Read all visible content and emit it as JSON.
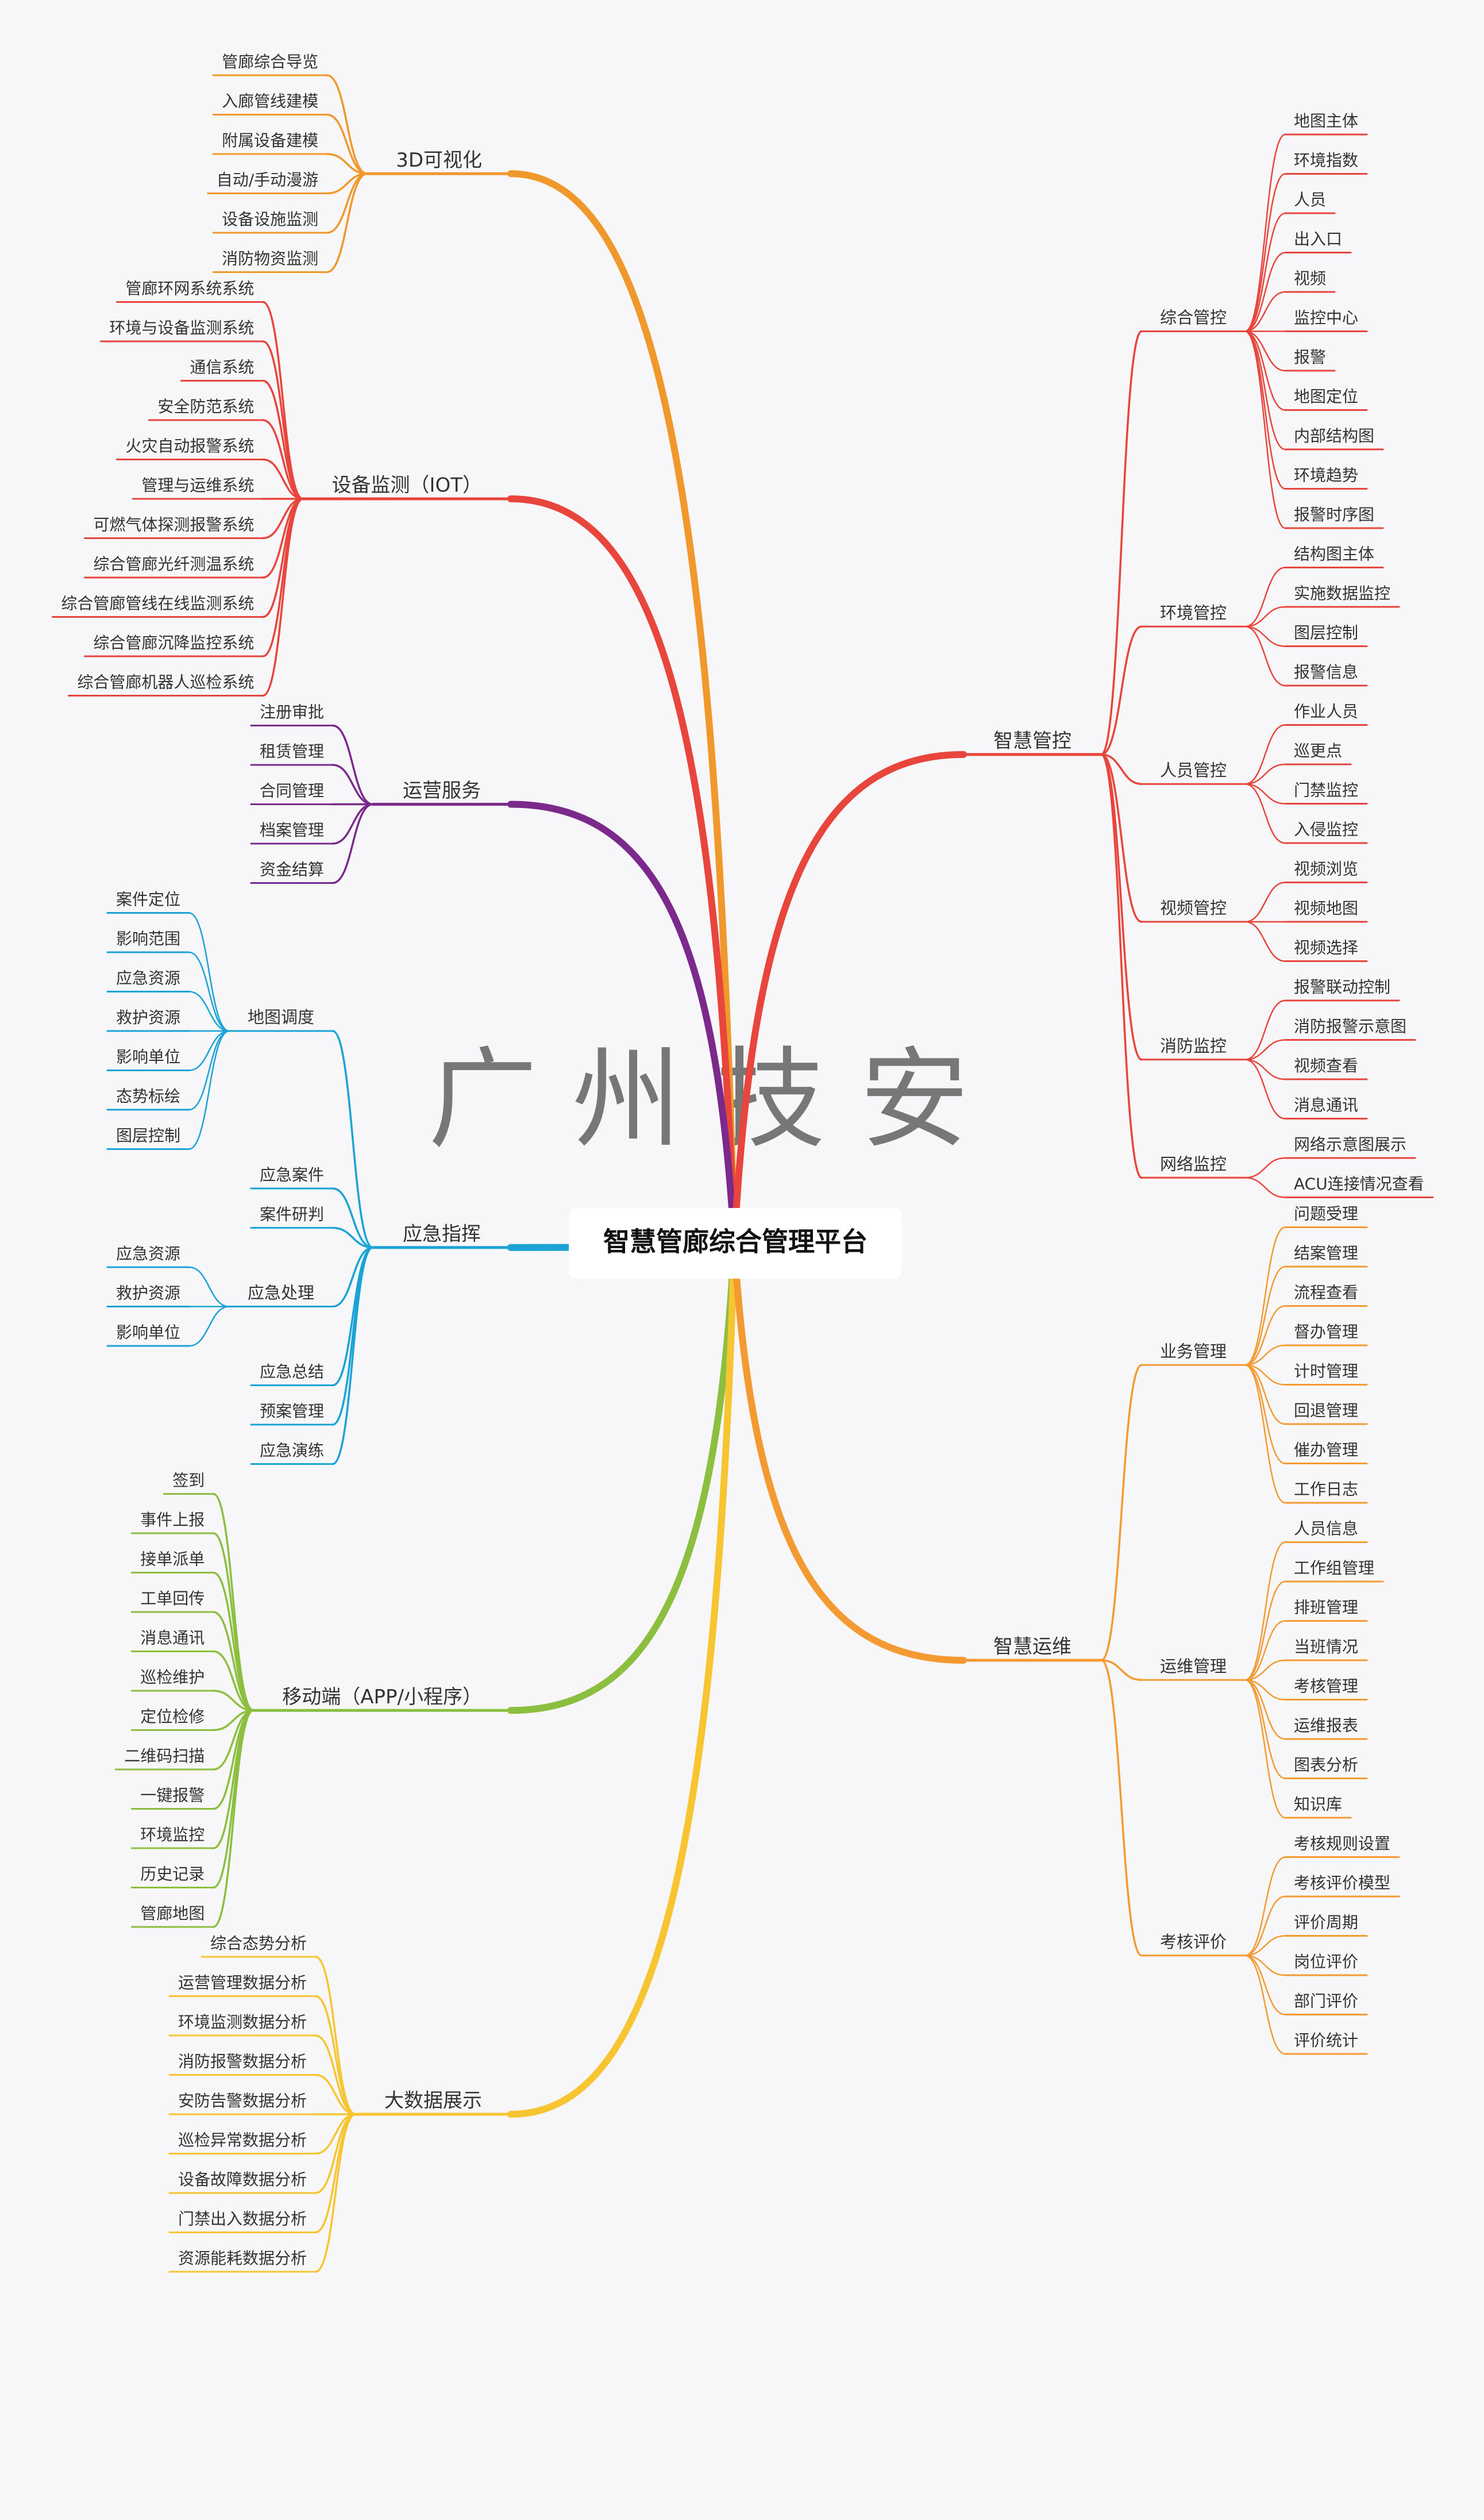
{
  "title": "智慧管廊综合管理平台",
  "watermark": "广 州 技 安",
  "branches": [
    {
      "label": "3D可视化",
      "side": "left",
      "color": "#f0982c",
      "children": [
        {
          "label": "管廊综合导览"
        },
        {
          "label": "入廊管线建模"
        },
        {
          "label": "附属设备建模"
        },
        {
          "label": "自动/手动漫游"
        },
        {
          "label": "设备设施监测"
        },
        {
          "label": "消防物资监测"
        }
      ]
    },
    {
      "label": "设备监测（IOT）",
      "side": "left",
      "color": "#e8453c",
      "children": [
        {
          "label": "管廊环网系统系统"
        },
        {
          "label": "环境与设备监测系统"
        },
        {
          "label": "通信系统"
        },
        {
          "label": "安全防范系统"
        },
        {
          "label": "火灾自动报警系统"
        },
        {
          "label": "管理与运维系统"
        },
        {
          "label": "可燃气体探测报警系统"
        },
        {
          "label": "综合管廊光纤测温系统"
        },
        {
          "label": "综合管廊管线在线监测系统"
        },
        {
          "label": "综合管廊沉降监控系统"
        },
        {
          "label": "综合管廊机器人巡检系统"
        }
      ]
    },
    {
      "label": "运营服务",
      "side": "left",
      "color": "#7b2a8c",
      "children": [
        {
          "label": "注册审批"
        },
        {
          "label": "租赁管理"
        },
        {
          "label": "合同管理"
        },
        {
          "label": "档案管理"
        },
        {
          "label": "资金结算"
        }
      ]
    },
    {
      "label": "应急指挥",
      "side": "left",
      "color": "#1aa3d4",
      "children": [
        {
          "label": "地图调度",
          "children": [
            {
              "label": "案件定位"
            },
            {
              "label": "影响范围"
            },
            {
              "label": "应急资源"
            },
            {
              "label": "救护资源"
            },
            {
              "label": "影响单位"
            },
            {
              "label": "态势标绘"
            },
            {
              "label": "图层控制"
            }
          ]
        },
        {
          "label": "应急案件"
        },
        {
          "label": "案件研判"
        },
        {
          "label": "应急处理",
          "children": [
            {
              "label": "应急资源"
            },
            {
              "label": "救护资源"
            },
            {
              "label": "影响单位"
            }
          ]
        },
        {
          "label": "应急总结"
        },
        {
          "label": "预案管理"
        },
        {
          "label": "应急演练"
        }
      ]
    },
    {
      "label": "移动端（APP/小程序）",
      "side": "left",
      "color": "#8cbf3f",
      "children": [
        {
          "label": "签到"
        },
        {
          "label": "事件上报"
        },
        {
          "label": "接单派单"
        },
        {
          "label": "工单回传"
        },
        {
          "label": "消息通讯"
        },
        {
          "label": "巡检维护"
        },
        {
          "label": "定位检修"
        },
        {
          "label": "二维码扫描"
        },
        {
          "label": "一键报警"
        },
        {
          "label": "环境监控"
        },
        {
          "label": "历史记录"
        },
        {
          "label": "管廊地图"
        }
      ]
    },
    {
      "label": "大数据展示",
      "side": "left",
      "color": "#f7c531",
      "children": [
        {
          "label": "综合态势分析"
        },
        {
          "label": "运营管理数据分析"
        },
        {
          "label": "环境监测数据分析"
        },
        {
          "label": "消防报警数据分析"
        },
        {
          "label": "安防告警数据分析"
        },
        {
          "label": "巡检异常数据分析"
        },
        {
          "label": "设备故障数据分析"
        },
        {
          "label": "门禁出入数据分析"
        },
        {
          "label": "资源能耗数据分析"
        }
      ]
    },
    {
      "label": "智慧管控",
      "side": "right",
      "color": "#e8453c",
      "children": [
        {
          "label": "综合管控",
          "children": [
            {
              "label": "地图主体"
            },
            {
              "label": "环境指数"
            },
            {
              "label": "人员"
            },
            {
              "label": "出入口"
            },
            {
              "label": "视频"
            },
            {
              "label": "监控中心"
            },
            {
              "label": "报警"
            },
            {
              "label": "地图定位"
            },
            {
              "label": "内部结构图"
            },
            {
              "label": "环境趋势"
            },
            {
              "label": "报警时序图"
            }
          ]
        },
        {
          "label": "环境管控",
          "children": [
            {
              "label": "结构图主体"
            },
            {
              "label": "实施数据监控"
            },
            {
              "label": "图层控制"
            },
            {
              "label": "报警信息"
            }
          ]
        },
        {
          "label": "人员管控",
          "children": [
            {
              "label": "作业人员"
            },
            {
              "label": "巡更点"
            },
            {
              "label": "门禁监控"
            },
            {
              "label": "入侵监控"
            }
          ]
        },
        {
          "label": "视频管控",
          "children": [
            {
              "label": "视频浏览"
            },
            {
              "label": "视频地图"
            },
            {
              "label": "视频选择"
            }
          ]
        },
        {
          "label": "消防监控",
          "children": [
            {
              "label": "报警联动控制"
            },
            {
              "label": "消防报警示意图"
            },
            {
              "label": "视频查看"
            },
            {
              "label": "消息通讯"
            }
          ]
        },
        {
          "label": "网络监控",
          "children": [
            {
              "label": "网络示意图展示"
            },
            {
              "label": "ACU连接情况查看"
            }
          ]
        }
      ]
    },
    {
      "label": "智慧运维",
      "side": "right",
      "color": "#f39a32",
      "children": [
        {
          "label": "业务管理",
          "children": [
            {
              "label": "问题受理"
            },
            {
              "label": "结案管理"
            },
            {
              "label": "流程查看"
            },
            {
              "label": "督办管理"
            },
            {
              "label": "计时管理"
            },
            {
              "label": "回退管理"
            },
            {
              "label": "催办管理"
            },
            {
              "label": "工作日志"
            }
          ]
        },
        {
          "label": "运维管理",
          "children": [
            {
              "label": "人员信息"
            },
            {
              "label": "工作组管理"
            },
            {
              "label": "排班管理"
            },
            {
              "label": "当班情况"
            },
            {
              "label": "考核管理"
            },
            {
              "label": "运维报表"
            },
            {
              "label": "图表分析"
            },
            {
              "label": "知识库"
            }
          ]
        },
        {
          "label": "考核评价",
          "children": [
            {
              "label": "考核规则设置"
            },
            {
              "label": "考核评价模型"
            },
            {
              "label": "评价周期"
            },
            {
              "label": "岗位评价"
            },
            {
              "label": "部门评价"
            },
            {
              "label": "评价统计"
            }
          ]
        }
      ]
    }
  ]
}
